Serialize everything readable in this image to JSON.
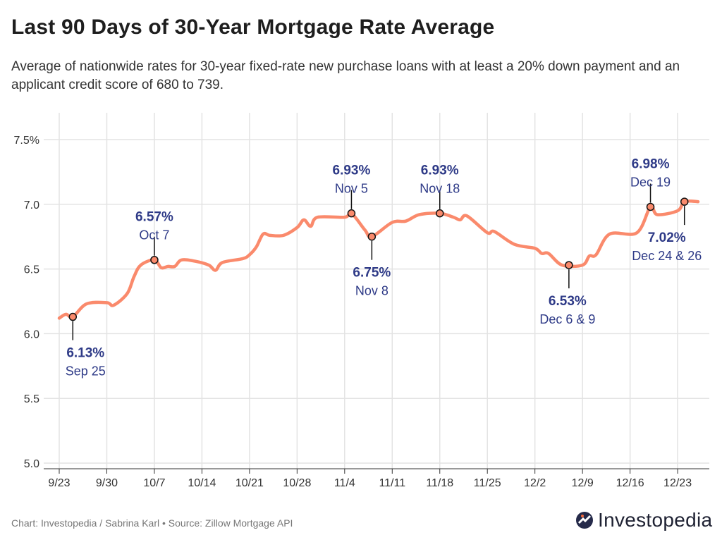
{
  "chart_data": {
    "type": "line",
    "title": "Last 90 Days of 30-Year Mortgage Rate Average",
    "subtitle": "Average of nationwide rates for 30-year fixed-rate new purchase loans with at least a 20% down payment and an applicant credit score of 680 to 739.",
    "xlabel": "",
    "ylabel": "",
    "ylim": [
      5.0,
      7.5
    ],
    "grid": true,
    "y_ticks": [
      "7.5%",
      "7.0",
      "6.5",
      "6.0",
      "5.5",
      "5.0"
    ],
    "y_tick_values": [
      7.5,
      7.0,
      6.5,
      6.0,
      5.5,
      5.0
    ],
    "x_ticks": [
      "9/23",
      "9/30",
      "10/7",
      "10/14",
      "10/21",
      "10/28",
      "11/4",
      "11/11",
      "11/18",
      "11/25",
      "12/2",
      "12/9",
      "12/16",
      "12/23"
    ],
    "line_color": "#fa8a6c",
    "annotation_color": "#2e3a87",
    "series": [
      {
        "x": [
          "9/23",
          "9/24",
          "9/25",
          "9/27",
          "9/30",
          "10/1",
          "10/3",
          "10/4",
          "10/5",
          "10/7",
          "10/8",
          "10/9",
          "10/10",
          "10/11",
          "10/13",
          "10/15",
          "10/16",
          "10/17",
          "10/20",
          "10/21",
          "10/22",
          "10/23",
          "10/24",
          "10/26",
          "10/28",
          "10/29",
          "10/30",
          "10/31",
          "11/4",
          "11/5",
          "11/7",
          "11/8",
          "11/11",
          "11/13",
          "11/15",
          "11/18",
          "11/20",
          "11/21",
          "11/22",
          "11/25",
          "11/26",
          "11/29",
          "12/2",
          "12/3",
          "12/4",
          "12/6",
          "12/9",
          "12/10",
          "12/11",
          "12/13",
          "12/17",
          "12/19",
          "12/20",
          "12/23",
          "12/24",
          "12/26"
        ],
        "y": [
          6.12,
          6.15,
          6.13,
          6.23,
          6.24,
          6.22,
          6.31,
          6.44,
          6.53,
          6.57,
          6.51,
          6.52,
          6.52,
          6.57,
          6.56,
          6.53,
          6.49,
          6.55,
          6.58,
          6.61,
          6.67,
          6.77,
          6.76,
          6.76,
          6.82,
          6.88,
          6.83,
          6.9,
          6.9,
          6.93,
          6.8,
          6.75,
          6.86,
          6.87,
          6.92,
          6.93,
          6.9,
          6.88,
          6.91,
          6.78,
          6.79,
          6.69,
          6.66,
          6.62,
          6.62,
          6.53,
          6.53,
          6.6,
          6.61,
          6.77,
          6.78,
          6.98,
          6.92,
          6.95,
          7.02,
          7.02
        ]
      }
    ],
    "annotations": [
      {
        "x": "9/25",
        "y": 6.13,
        "value_label": "6.13%",
        "date_label": "Sep 25",
        "position": "below"
      },
      {
        "x": "10/7",
        "y": 6.57,
        "value_label": "6.57%",
        "date_label": "Oct 7",
        "position": "above"
      },
      {
        "x": "11/5",
        "y": 6.93,
        "value_label": "6.93%",
        "date_label": "Nov 5",
        "position": "above"
      },
      {
        "x": "11/8",
        "y": 6.75,
        "value_label": "6.75%",
        "date_label": "Nov 8",
        "position": "below"
      },
      {
        "x": "11/18",
        "y": 6.93,
        "value_label": "6.93%",
        "date_label": "Nov 18",
        "position": "above"
      },
      {
        "x": "12/7",
        "y": 6.53,
        "value_label": "6.53%",
        "date_label": "Dec 6 & 9",
        "position": "below"
      },
      {
        "x": "12/19",
        "y": 6.98,
        "value_label": "6.98%",
        "date_label": "Dec 19",
        "position": "above"
      },
      {
        "x": "12/24",
        "y": 7.02,
        "value_label": "7.02%",
        "date_label": "Dec 24 & 26",
        "position": "below"
      }
    ]
  },
  "footer": {
    "credit": "Chart: Investopedia / Sabrina Karl • Source: Zillow Mortgage API"
  },
  "logo": {
    "text": "Investopedia"
  }
}
